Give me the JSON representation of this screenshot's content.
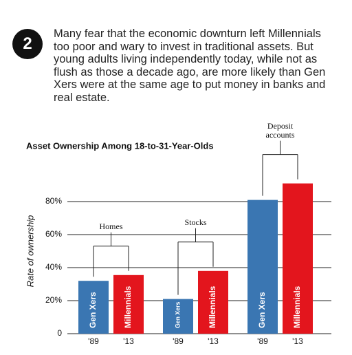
{
  "badge": "2",
  "text": "Many fear that the economic downturn left Millennials too poor and wary to invest in traditional assets. But young adults living independently today, while not as flush as those a decade ago, are more likely than Gen Xers were at the same age to put money in banks and real estate.",
  "chart_data": {
    "type": "bar",
    "title": "Asset Ownership Among 18-to-31-Year-Olds",
    "y_label": "Rate of ownership",
    "categories": [
      "Homes",
      "Stocks",
      "Deposit accounts"
    ],
    "series": [
      {
        "name": "Gen Xers",
        "period": "'89",
        "color": "#3a76b2",
        "values": [
          32,
          21,
          81
        ]
      },
      {
        "name": "Millennials",
        "period": "'13",
        "color": "#e3151d",
        "values": [
          35.5,
          38,
          91
        ]
      }
    ],
    "ylim": [
      0,
      100
    ],
    "yticks": [
      0,
      {
        "value": 20,
        "label": "20%"
      },
      {
        "value": 40,
        "label": "40%"
      },
      {
        "value": 60,
        "label": "60%"
      },
      {
        "value": 80,
        "label": "80%"
      }
    ],
    "grid": true
  }
}
